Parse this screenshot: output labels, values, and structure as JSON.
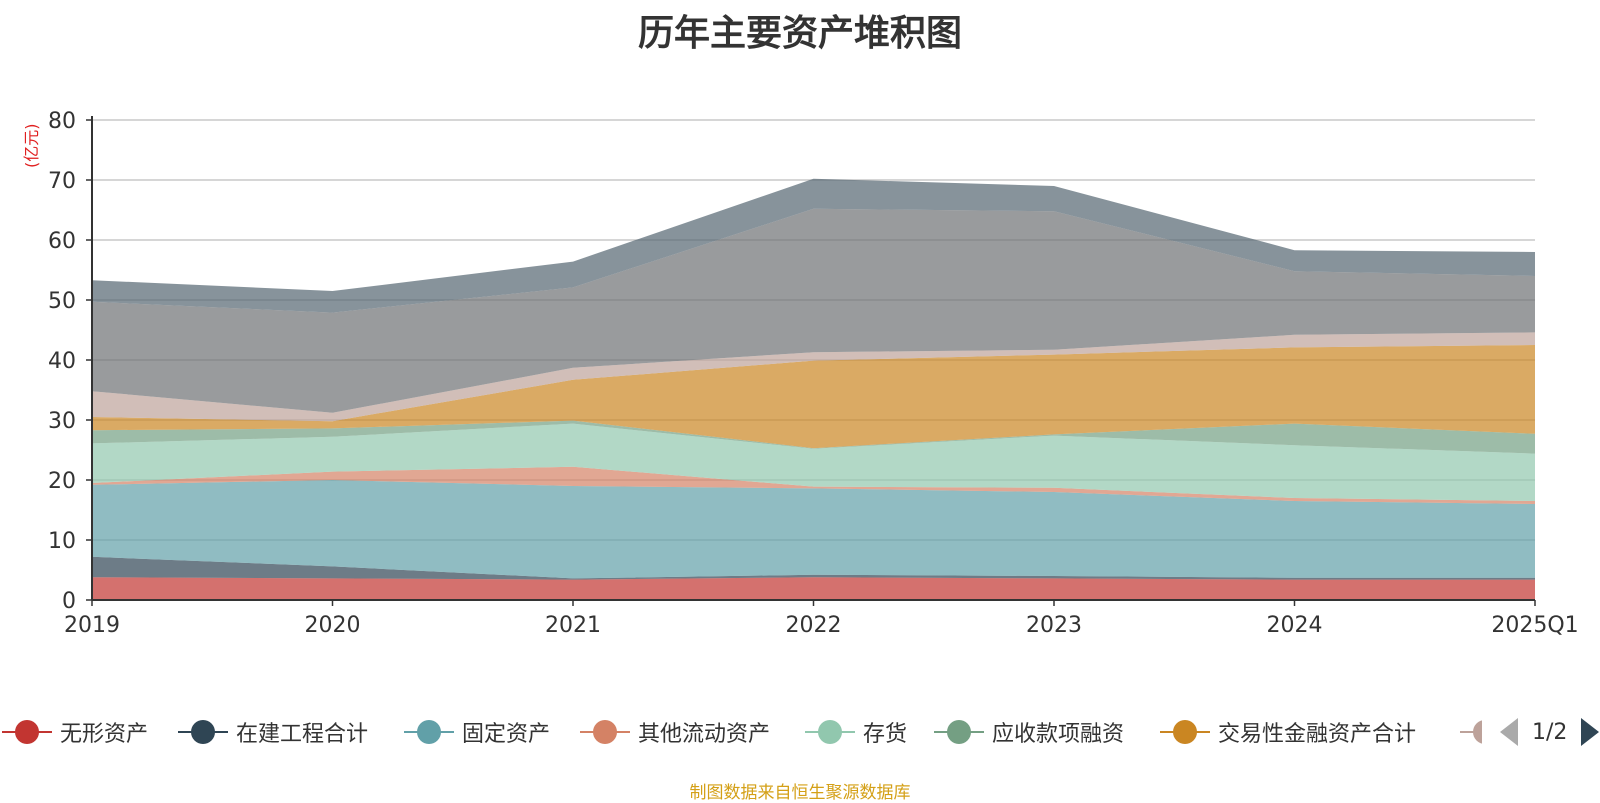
{
  "chart_data": {
    "type": "area",
    "title": "历年主要资产堆积图",
    "ylabel": "(亿元)",
    "xlabel": "",
    "stacked": true,
    "categories": [
      "2019",
      "2020",
      "2021",
      "2022",
      "2023",
      "2024",
      "2025Q1"
    ],
    "ylim": [
      0,
      80
    ],
    "yticks": [
      0,
      10,
      20,
      30,
      40,
      50,
      60,
      70,
      80
    ],
    "grid": true,
    "series": [
      {
        "name": "无形资产",
        "color": "#c23531",
        "values": [
          3.8,
          3.6,
          3.4,
          3.8,
          3.6,
          3.4,
          3.4
        ]
      },
      {
        "name": "在建工程合计",
        "color": "#2f4554",
        "values": [
          3.4,
          2.0,
          0.2,
          0.4,
          0.4,
          0.3,
          0.3
        ]
      },
      {
        "name": "固定资产",
        "color": "#61a0a8",
        "values": [
          12.0,
          14.4,
          15.4,
          14.4,
          14.0,
          12.8,
          12.3
        ]
      },
      {
        "name": "其他流动资产",
        "color": "#d48265",
        "values": [
          0.3,
          1.4,
          3.2,
          0.3,
          0.7,
          0.5,
          0.5
        ]
      },
      {
        "name": "存货",
        "color": "#91c7ae",
        "values": [
          6.6,
          5.8,
          7.2,
          6.3,
          8.7,
          8.8,
          7.9
        ]
      },
      {
        "name": "应收款项融资",
        "color": "#749f83",
        "values": [
          2.2,
          1.4,
          0.5,
          0.1,
          0.2,
          3.6,
          3.3
        ]
      },
      {
        "name": "交易性金融资产合计",
        "color": "#ca8622",
        "values": [
          2.2,
          1.2,
          6.8,
          14.6,
          13.3,
          12.7,
          14.8
        ]
      },
      {
        "name": "",
        "color": "#bda29a",
        "values": [
          4.3,
          1.4,
          2.0,
          1.4,
          0.8,
          2.1,
          2.1
        ]
      },
      {
        "name": "",
        "color": "#6e7074",
        "values": [
          14.9,
          16.7,
          13.4,
          23.9,
          23.1,
          10.6,
          9.4
        ]
      },
      {
        "name": "",
        "color": "#546570",
        "values": [
          3.6,
          3.6,
          4.3,
          5.0,
          4.2,
          3.5,
          4.0
        ]
      }
    ]
  },
  "legend": {
    "page_indicator": "1/2",
    "items": [
      {
        "label": "无形资产",
        "color": "#c23531"
      },
      {
        "label": "在建工程合计",
        "color": "#2f4554"
      },
      {
        "label": "固定资产",
        "color": "#61a0a8"
      },
      {
        "label": "其他流动资产",
        "color": "#d48265"
      },
      {
        "label": "存货",
        "color": "#91c7ae"
      },
      {
        "label": "应收款项融资",
        "color": "#749f83"
      },
      {
        "label": "交易性金融资产合计",
        "color": "#ca8622"
      }
    ]
  },
  "source_note": "制图数据来自恒生聚源数据库"
}
